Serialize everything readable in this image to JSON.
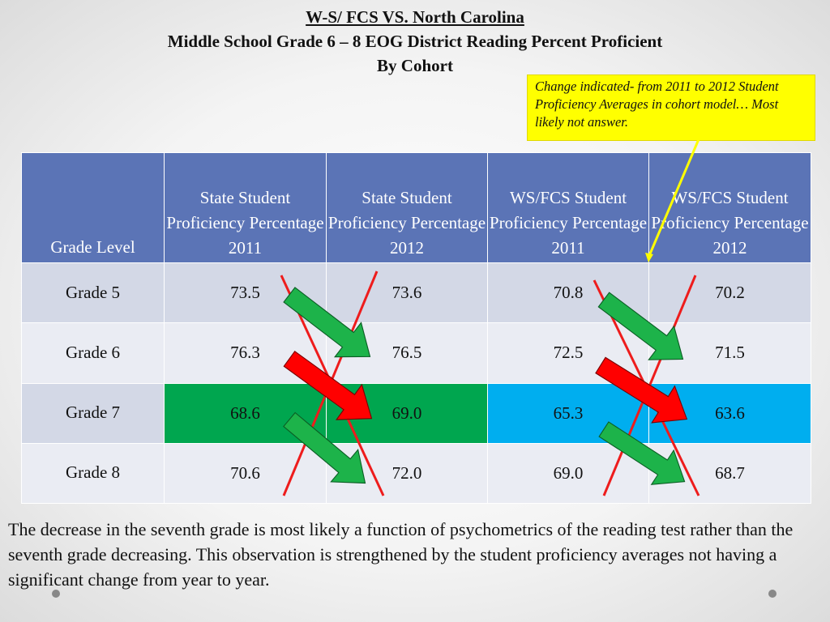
{
  "title": {
    "line1": "W-S/ FCS VS. North Carolina",
    "line2": "Middle School Grade 6 – 8 EOG District Reading Percent Proficient",
    "line3": "By Cohort"
  },
  "callout": "Change indicated- from 2011 to 2012 Student Proficiency Averages in cohort model… Most likely not answer.",
  "table": {
    "headers": [
      "Grade Level",
      "State Student Proficiency Percentage 2011",
      "State Student Proficiency Percentage 2012",
      "WS/FCS Student Proficiency Percentage 2011",
      "WS/FCS Student Proficiency Percentage 2012"
    ],
    "rows": [
      [
        "Grade 5",
        "73.5",
        "73.6",
        "70.8",
        "70.2"
      ],
      [
        "Grade 6",
        "76.3",
        "76.5",
        "72.5",
        "71.5"
      ],
      [
        "Grade 7",
        "68.6",
        "69.0",
        "65.3",
        "63.6"
      ],
      [
        "Grade 8",
        "70.6",
        "72.0",
        "69.0",
        "68.7"
      ]
    ]
  },
  "colors": {
    "header_blue": "#5b74b6",
    "highlight_green": "#00a64f",
    "highlight_blue": "#00aeef",
    "increase_arrow": "#1db34a",
    "decrease_arrow": "#ff0000",
    "cross_line": "#ee1c1c",
    "callout_bg": "#ffff00",
    "pointer_line": "#ffff00"
  },
  "note": "The decrease in the seventh grade is most likely a function of psychometrics of the reading test rather than the seventh grade decreasing. This observation is strengthened by the student proficiency averages not having a significant change from year to year."
}
